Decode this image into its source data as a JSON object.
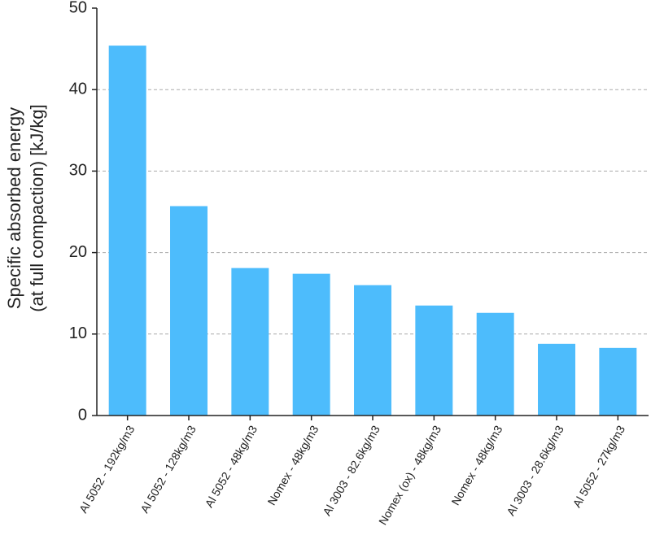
{
  "chart_data": {
    "type": "bar",
    "ylabel": [
      "Specific absorbed energy",
      "(at full compaction) [kJ/kg]"
    ],
    "categories": [
      "Al 5052 - 192kg/m3",
      "Al 5052 - 128kg/m3",
      "Al 5052 - 48kg/m3",
      "Nomex - 48kg/m3",
      "Al 3003 - 82.6kg/m3",
      "Nomex (ox) - 48kg/m3",
      "Nomex - 48kg/m3",
      "Al 3003 - 28.6kg/m3",
      "Al 5052 - 27kg/m3"
    ],
    "values": [
      45.4,
      25.7,
      18.1,
      17.4,
      16.0,
      13.5,
      12.6,
      8.8,
      8.3
    ],
    "color": "#4dbcfc",
    "ylim": [
      0,
      50
    ],
    "yticks": [
      0,
      10,
      20,
      30,
      40,
      50
    ],
    "grid": true
  }
}
